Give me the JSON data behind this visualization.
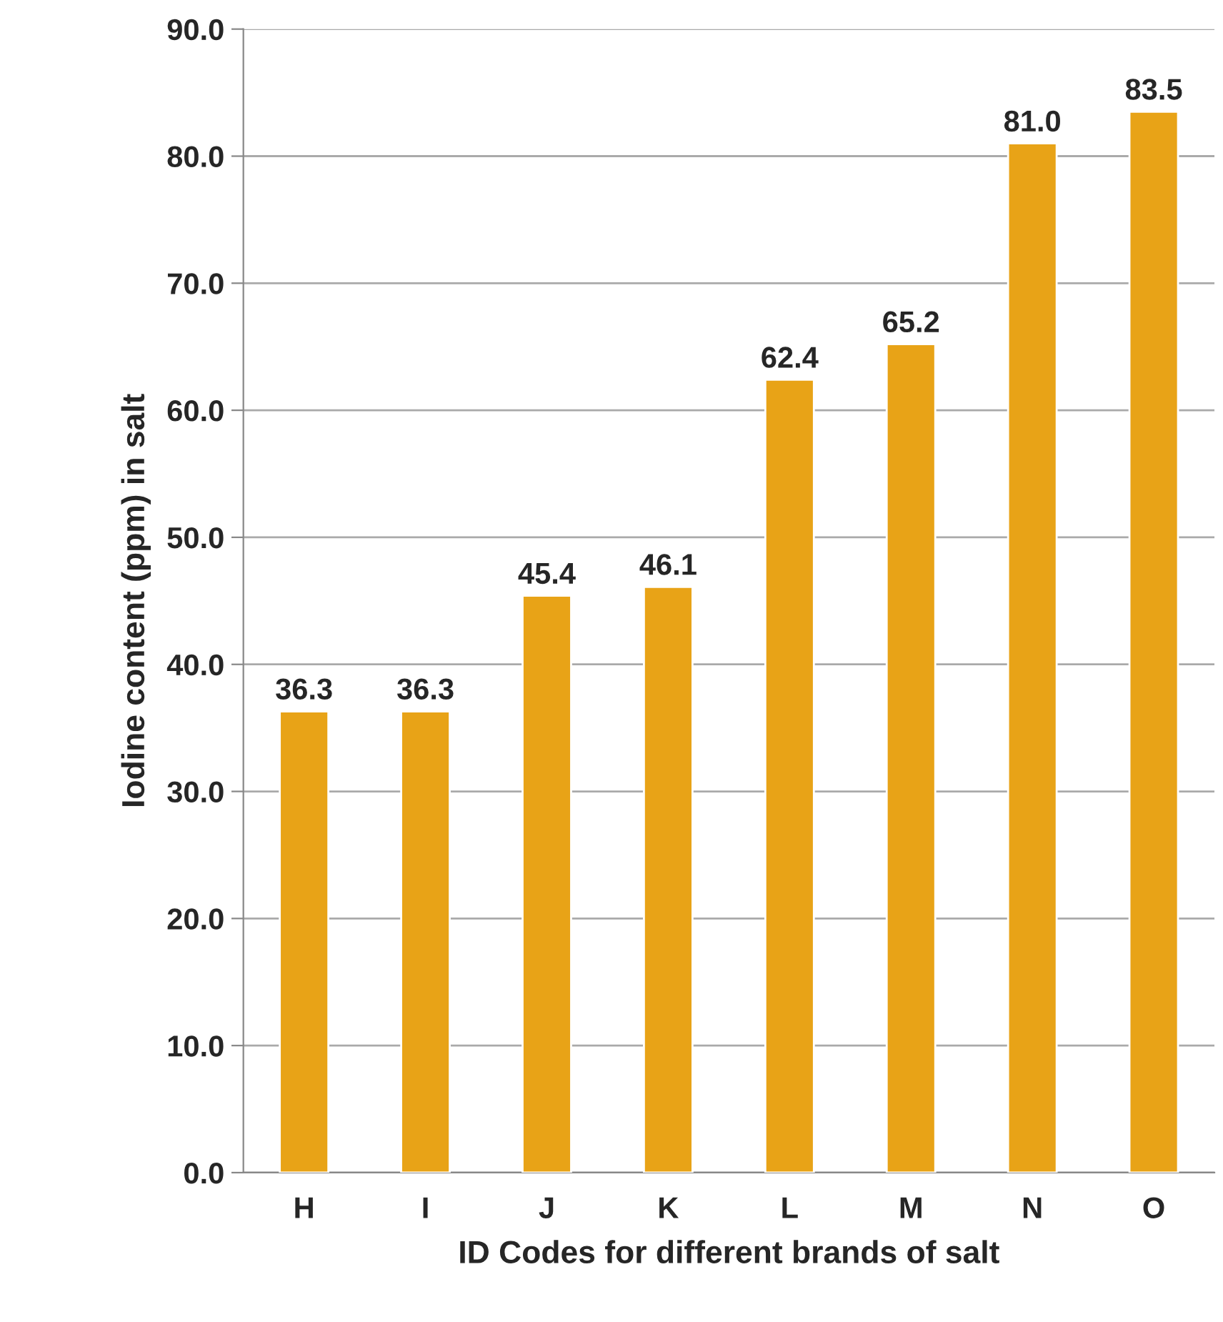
{
  "chart_data": {
    "type": "bar",
    "xlabel": "ID Codes for different brands of salt",
    "ylabel": "Iodine content (ppm) in salt",
    "categories": [
      "H",
      "I",
      "J",
      "K",
      "L",
      "M",
      "N",
      "O"
    ],
    "values": [
      36.3,
      36.3,
      45.4,
      46.1,
      62.4,
      65.2,
      81.0,
      83.5
    ],
    "value_labels": [
      "36.3",
      "36.3",
      "45.4",
      "46.1",
      "62.4",
      "65.2",
      "81.0",
      "83.5"
    ],
    "color": "#e8a317",
    "ylim": [
      0,
      90
    ],
    "yticks": [
      {
        "value": 0,
        "label": "0.0"
      },
      {
        "value": 10,
        "label": "10.0"
      },
      {
        "value": 20,
        "label": "20.0"
      },
      {
        "value": 30,
        "label": "30.0"
      },
      {
        "value": 40,
        "label": "40.0"
      },
      {
        "value": 50,
        "label": "50.0"
      },
      {
        "value": 60,
        "label": "60.0"
      },
      {
        "value": 70,
        "label": "70.0"
      },
      {
        "value": 80,
        "label": "80.0"
      },
      {
        "value": 90,
        "label": "90.0"
      }
    ],
    "grid": "y",
    "legend": false
  }
}
